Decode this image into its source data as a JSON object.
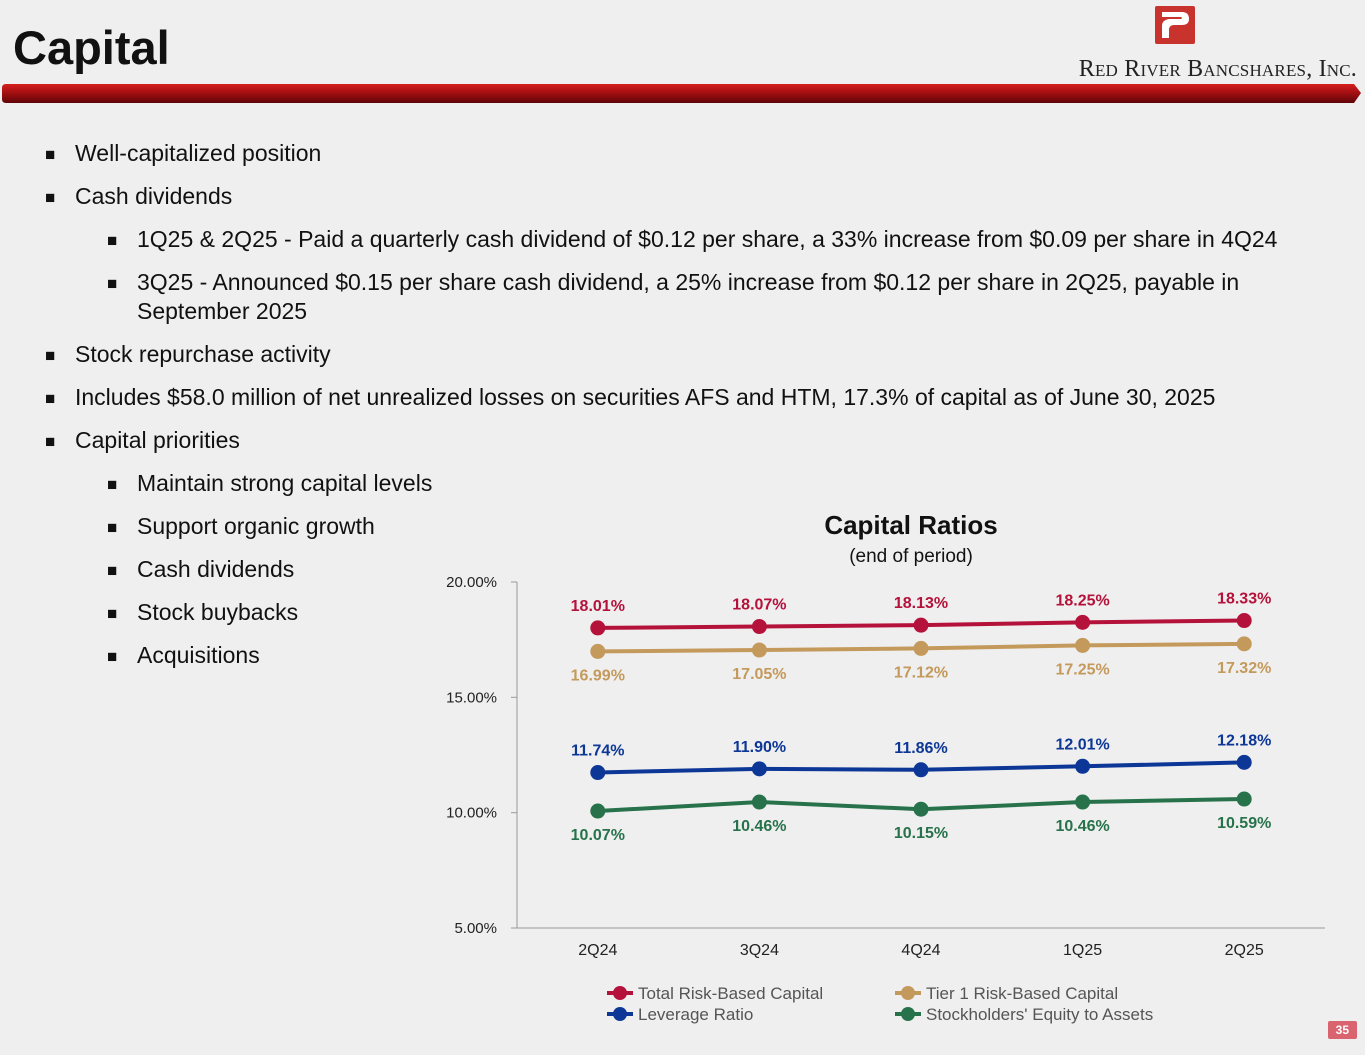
{
  "header": {
    "title": "Capital",
    "company": "Red River Bancshares, Inc.",
    "brand_color": "#b0272d"
  },
  "bullets": [
    {
      "level": 1,
      "text": "Well-capitalized position"
    },
    {
      "level": 1,
      "text": "Cash dividends"
    },
    {
      "level": 2,
      "text": "1Q25 & 2Q25 - Paid a quarterly cash dividend of $0.12 per share, a 33% increase from $0.09 per share in 4Q24"
    },
    {
      "level": 2,
      "text": "3Q25 - Announced $0.15 per share cash dividend, a 25% increase from $0.12 per share in 2Q25, payable in September 2025"
    },
    {
      "level": 1,
      "text": "Stock repurchase activity"
    },
    {
      "level": 1,
      "text": "Includes $58.0 million of net unrealized losses on securities AFS and HTM, 17.3% of capital as of June 30, 2025"
    },
    {
      "level": 1,
      "text": "Capital priorities"
    },
    {
      "level": 2,
      "text": "Maintain strong capital levels"
    },
    {
      "level": 2,
      "text": "Support organic growth"
    },
    {
      "level": 2,
      "text": "Cash dividends"
    },
    {
      "level": 2,
      "text": "Stock buybacks"
    },
    {
      "level": 2,
      "text": "Acquisitions"
    }
  ],
  "bullet_marker": "■",
  "chart_data": {
    "type": "line",
    "title": "Capital Ratios",
    "subtitle": "(end of period)",
    "categories": [
      "2Q24",
      "3Q24",
      "4Q24",
      "1Q25",
      "2Q25"
    ],
    "ylim": [
      5,
      20
    ],
    "yticks": [
      5,
      10,
      15,
      20
    ],
    "ytick_labels": [
      "5.00%",
      "10.00%",
      "15.00%",
      "20.00%"
    ],
    "xlabel": "",
    "ylabel": "",
    "grid": false,
    "legend_position": "bottom",
    "series": [
      {
        "name": "Total Risk-Based Capital",
        "color": "#b5123b",
        "label_side": "above",
        "values": [
          18.01,
          18.07,
          18.13,
          18.25,
          18.33
        ],
        "labels": [
          "18.01%",
          "18.07%",
          "18.13%",
          "18.25%",
          "18.33%"
        ]
      },
      {
        "name": "Tier 1 Risk-Based Capital",
        "color": "#c49a5c",
        "label_side": "below",
        "values": [
          16.99,
          17.05,
          17.12,
          17.25,
          17.32
        ],
        "labels": [
          "16.99%",
          "17.05%",
          "17.12%",
          "17.25%",
          "17.32%"
        ]
      },
      {
        "name": "Leverage Ratio",
        "color": "#0d3796",
        "label_side": "above",
        "values": [
          11.74,
          11.9,
          11.86,
          12.01,
          12.18
        ],
        "labels": [
          "11.74%",
          "11.90%",
          "11.86%",
          "12.01%",
          "12.18%"
        ]
      },
      {
        "name": "Stockholders' Equity to Assets",
        "color": "#27724b",
        "label_side": "below",
        "values": [
          10.07,
          10.46,
          10.15,
          10.46,
          10.59
        ],
        "labels": [
          "10.07%",
          "10.46%",
          "10.15%",
          "10.46%",
          "10.59%"
        ]
      }
    ]
  },
  "footer": {
    "page_number": "35"
  }
}
